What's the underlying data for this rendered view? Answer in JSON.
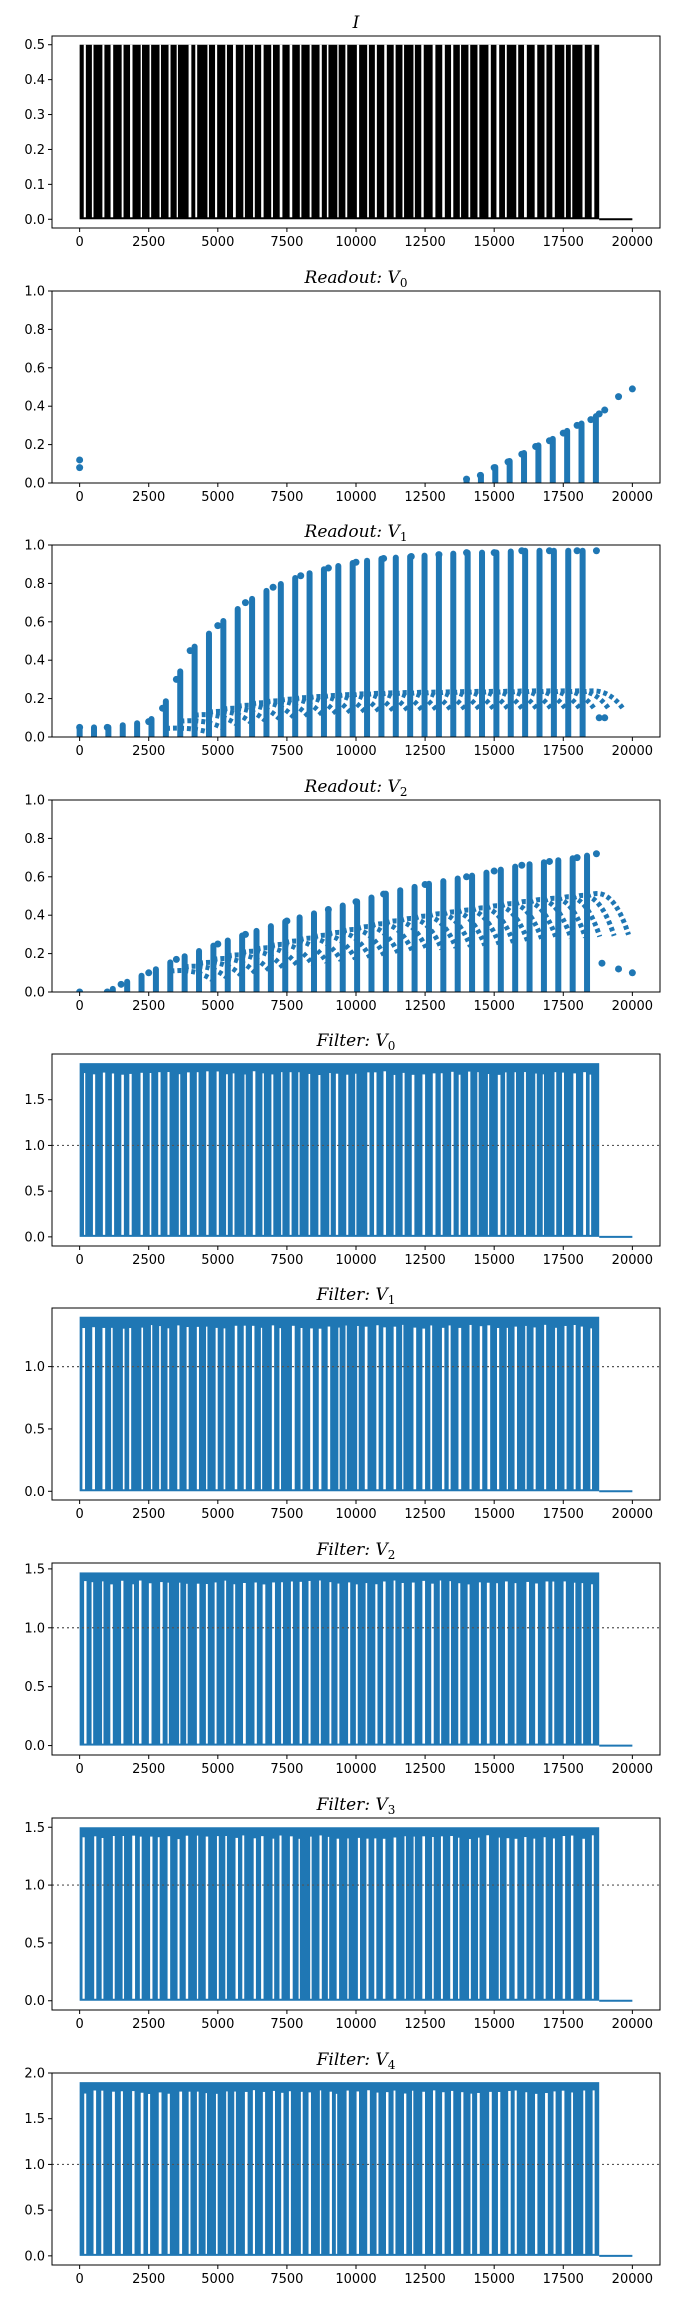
{
  "chart_data": [
    {
      "type": "area",
      "title": "I",
      "title_sub": "",
      "color": "#000000",
      "xlim": [
        -1000,
        21000
      ],
      "ylim": [
        -0.025,
        0.525
      ],
      "xticks": [
        0,
        2500,
        5000,
        7500,
        10000,
        12500,
        15000,
        17500,
        20000
      ],
      "yticks": [
        0.0,
        0.1,
        0.2,
        0.3,
        0.4,
        0.5
      ],
      "ytick_labels": [
        "0.0",
        "0.1",
        "0.2",
        "0.3",
        "0.4",
        "0.5"
      ],
      "series": [
        {
          "x": [
            0,
            18800,
            18800,
            20000
          ],
          "values": [
            0.5,
            0.5,
            0.0,
            0.0
          ]
        }
      ],
      "reference_line": null,
      "notes": "dense square pulses between 0 and 0.5 from t=0 to ~18800"
    },
    {
      "type": "scatter",
      "title": "Readout: V",
      "title_sub": "0",
      "color": "#1f77b4",
      "xlim": [
        -1000,
        21000
      ],
      "ylim": [
        0.0,
        1.0
      ],
      "xticks": [
        0,
        2500,
        5000,
        7500,
        10000,
        12500,
        15000,
        17500,
        20000
      ],
      "yticks": [
        0.0,
        0.2,
        0.4,
        0.6,
        0.8,
        1.0
      ],
      "ytick_labels": [
        "0.0",
        "0.2",
        "0.4",
        "0.6",
        "0.8",
        "1.0"
      ],
      "series": [
        {
          "x": [
            0,
            0,
            14000,
            14500,
            15000,
            15500,
            16000,
            16500,
            17000,
            17500,
            18000,
            18500,
            18800,
            19000,
            19500,
            20000
          ],
          "values": [
            0.12,
            0.08,
            0.02,
            0.04,
            0.08,
            0.11,
            0.15,
            0.19,
            0.22,
            0.26,
            0.3,
            0.33,
            0.36,
            0.38,
            0.45,
            0.49
          ]
        }
      ],
      "reference_line": null
    },
    {
      "type": "scatter",
      "title": "Readout: V",
      "title_sub": "1",
      "color": "#1f77b4",
      "xlim": [
        -1000,
        21000
      ],
      "ylim": [
        0.0,
        1.0
      ],
      "xticks": [
        0,
        2500,
        5000,
        7500,
        10000,
        12500,
        15000,
        17500,
        20000
      ],
      "yticks": [
        0.0,
        0.2,
        0.4,
        0.6,
        0.8,
        1.0
      ],
      "ytick_labels": [
        "0.0",
        "0.2",
        "0.4",
        "0.6",
        "0.8",
        "1.0"
      ],
      "series": [
        {
          "x": [
            0,
            1000,
            2500,
            3000,
            3500,
            4000,
            5000,
            6000,
            7000,
            8000,
            9000,
            10000,
            11000,
            12000,
            13000,
            14000,
            15000,
            16000,
            17000,
            18000,
            18700,
            18800,
            19000
          ],
          "values": [
            0.05,
            0.05,
            0.08,
            0.15,
            0.3,
            0.45,
            0.58,
            0.7,
            0.78,
            0.84,
            0.88,
            0.91,
            0.93,
            0.94,
            0.95,
            0.96,
            0.96,
            0.97,
            0.97,
            0.97,
            0.97,
            0.1,
            0.1
          ]
        }
      ],
      "reference_line": null
    },
    {
      "type": "scatter",
      "title": "Readout: V",
      "title_sub": "2",
      "color": "#1f77b4",
      "xlim": [
        -1000,
        21000
      ],
      "ylim": [
        0.0,
        1.0
      ],
      "xticks": [
        0,
        2500,
        5000,
        7500,
        10000,
        12500,
        15000,
        17500,
        20000
      ],
      "yticks": [
        0.0,
        0.2,
        0.4,
        0.6,
        0.8,
        1.0
      ],
      "ytick_labels": [
        "0.0",
        "0.2",
        "0.4",
        "0.6",
        "0.8",
        "1.0"
      ],
      "series": [
        {
          "x": [
            0,
            1000,
            1500,
            2500,
            3500,
            5000,
            6000,
            7500,
            9000,
            10000,
            11000,
            12500,
            14000,
            15000,
            16000,
            17000,
            18000,
            18700,
            18900,
            19500,
            20000
          ],
          "values": [
            0.0,
            0.0,
            0.04,
            0.1,
            0.17,
            0.25,
            0.3,
            0.37,
            0.43,
            0.47,
            0.51,
            0.56,
            0.6,
            0.63,
            0.66,
            0.68,
            0.7,
            0.72,
            0.15,
            0.12,
            0.1
          ]
        }
      ],
      "reference_line": null
    },
    {
      "type": "area",
      "title": "Filter: V",
      "title_sub": "0",
      "color": "#1f77b4",
      "xlim": [
        -1000,
        21000
      ],
      "ylim": [
        -0.1,
        2.0
      ],
      "xticks": [
        0,
        2500,
        5000,
        7500,
        10000,
        12500,
        15000,
        17500,
        20000
      ],
      "yticks": [
        0.0,
        0.5,
        1.0,
        1.5
      ],
      "ytick_labels": [
        "0.0",
        "0.5",
        "1.0",
        "1.5"
      ],
      "series": [
        {
          "x": [
            0,
            18800,
            18800,
            20000
          ],
          "values": [
            1.9,
            1.9,
            0.0,
            0.0
          ]
        }
      ],
      "reference_line": 1.0
    },
    {
      "type": "area",
      "title": "Filter: V",
      "title_sub": "1",
      "color": "#1f77b4",
      "xlim": [
        -1000,
        21000
      ],
      "ylim": [
        -0.07,
        1.47
      ],
      "xticks": [
        0,
        2500,
        5000,
        7500,
        10000,
        12500,
        15000,
        17500,
        20000
      ],
      "yticks": [
        0.0,
        0.5,
        1.0
      ],
      "ytick_labels": [
        "0.0",
        "0.5",
        "1.0"
      ],
      "series": [
        {
          "x": [
            0,
            18800,
            18800,
            20000
          ],
          "values": [
            1.4,
            1.4,
            0.0,
            0.0
          ]
        }
      ],
      "reference_line": 1.0
    },
    {
      "type": "area",
      "title": "Filter: V",
      "title_sub": "2",
      "color": "#1f77b4",
      "xlim": [
        -1000,
        21000
      ],
      "ylim": [
        -0.08,
        1.55
      ],
      "xticks": [
        0,
        2500,
        5000,
        7500,
        10000,
        12500,
        15000,
        17500,
        20000
      ],
      "yticks": [
        0.0,
        0.5,
        1.0,
        1.5
      ],
      "ytick_labels": [
        "0.0",
        "0.5",
        "1.0",
        "1.5"
      ],
      "series": [
        {
          "x": [
            0,
            18800,
            18800,
            20000
          ],
          "values": [
            1.47,
            1.47,
            0.0,
            0.0
          ]
        }
      ],
      "reference_line": 1.0
    },
    {
      "type": "area",
      "title": "Filter: V",
      "title_sub": "3",
      "color": "#1f77b4",
      "xlim": [
        -1000,
        21000
      ],
      "ylim": [
        -0.08,
        1.58
      ],
      "xticks": [
        0,
        2500,
        5000,
        7500,
        10000,
        12500,
        15000,
        17500,
        20000
      ],
      "yticks": [
        0.0,
        0.5,
        1.0,
        1.5
      ],
      "ytick_labels": [
        "0.0",
        "0.5",
        "1.0",
        "1.5"
      ],
      "series": [
        {
          "x": [
            0,
            18800,
            18800,
            20000
          ],
          "values": [
            1.5,
            1.5,
            0.0,
            0.0
          ]
        }
      ],
      "reference_line": 1.0
    },
    {
      "type": "area",
      "title": "Filter: V",
      "title_sub": "4",
      "color": "#1f77b4",
      "xlim": [
        -1000,
        21000
      ],
      "ylim": [
        -0.1,
        2.0
      ],
      "xticks": [
        0,
        2500,
        5000,
        7500,
        10000,
        12500,
        15000,
        17500,
        20000
      ],
      "yticks": [
        0.0,
        0.5,
        1.0,
        1.5,
        2.0
      ],
      "ytick_labels": [
        "0.0",
        "0.5",
        "1.0",
        "1.5",
        "2.0"
      ],
      "series": [
        {
          "x": [
            0,
            18800,
            18800,
            20000
          ],
          "values": [
            1.9,
            1.9,
            0.0,
            0.0
          ]
        }
      ],
      "reference_line": 1.0
    }
  ]
}
